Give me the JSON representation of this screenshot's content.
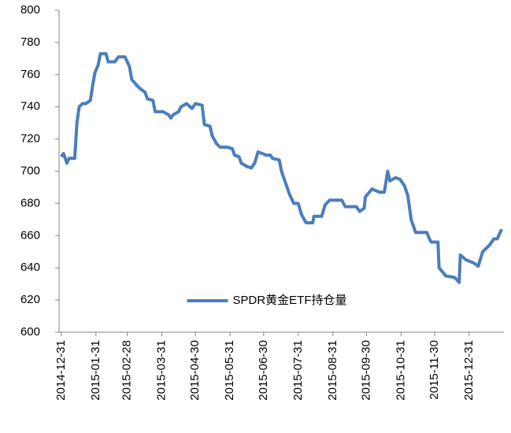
{
  "chart_data": {
    "type": "line",
    "x": [
      "2014-12-31",
      "2015-01-02",
      "2015-01-05",
      "2015-01-07",
      "2015-01-12",
      "2015-01-14",
      "2015-01-16",
      "2015-01-19",
      "2015-01-22",
      "2015-01-26",
      "2015-01-28",
      "2015-01-30",
      "2015-02-02",
      "2015-02-04",
      "2015-02-09",
      "2015-02-11",
      "2015-02-17",
      "2015-02-20",
      "2015-02-26",
      "2015-03-02",
      "2015-03-04",
      "2015-03-09",
      "2015-03-12",
      "2015-03-16",
      "2015-03-18",
      "2015-03-23",
      "2015-03-25",
      "2015-04-01",
      "2015-04-06",
      "2015-04-08",
      "2015-04-10",
      "2015-04-15",
      "2015-04-17",
      "2015-04-22",
      "2015-04-27",
      "2015-04-30",
      "2015-05-06",
      "2015-05-08",
      "2015-05-13",
      "2015-05-15",
      "2015-05-19",
      "2015-05-22",
      "2015-05-28",
      "2015-06-02",
      "2015-06-04",
      "2015-06-08",
      "2015-06-10",
      "2015-06-15",
      "2015-06-19",
      "2015-06-22",
      "2015-06-25",
      "2015-06-29",
      "2015-07-02",
      "2015-07-06",
      "2015-07-08",
      "2015-07-14",
      "2015-07-16",
      "2015-07-20",
      "2015-07-23",
      "2015-07-27",
      "2015-07-31",
      "2015-08-03",
      "2015-08-07",
      "2015-08-13",
      "2015-08-14",
      "2015-08-21",
      "2015-08-24",
      "2015-08-28",
      "2015-09-08",
      "2015-09-11",
      "2015-09-21",
      "2015-09-24",
      "2015-09-28",
      "2015-09-29",
      "2015-10-05",
      "2015-10-08",
      "2015-10-12",
      "2015-10-16",
      "2015-10-19",
      "2015-10-21",
      "2015-10-26",
      "2015-10-30",
      "2015-11-03",
      "2015-11-06",
      "2015-11-09",
      "2015-11-11",
      "2015-11-13",
      "2015-11-23",
      "2015-11-26",
      "2015-11-27",
      "2015-12-03",
      "2015-12-04",
      "2015-12-10",
      "2015-12-18",
      "2015-12-22",
      "2015-12-23",
      "2015-12-28",
      "2016-01-04",
      "2016-01-08",
      "2016-01-12",
      "2016-01-18",
      "2016-01-22",
      "2016-01-25",
      "2016-01-29"
    ],
    "series": [
      {
        "name": "SPDR黄金ETF持仓量",
        "color": "#4a7ebb",
        "values": [
          709,
          711,
          705,
          708,
          708,
          730,
          740,
          742,
          742,
          744,
          753,
          761,
          766,
          773,
          773,
          768,
          768,
          771,
          771,
          765,
          757,
          753,
          751,
          749,
          745,
          744,
          737,
          737,
          735,
          733,
          735,
          737,
          740,
          742,
          739,
          742,
          741,
          729,
          728,
          722,
          717,
          715,
          715,
          714,
          710,
          709,
          705,
          703,
          702,
          705,
          712,
          711,
          710,
          710,
          708,
          707,
          700,
          692,
          686,
          680,
          680,
          673,
          668,
          668,
          672,
          672,
          679,
          682,
          682,
          678,
          678,
          675,
          677,
          684,
          689,
          688,
          687,
          687,
          700,
          694,
          696,
          695,
          691,
          685,
          670,
          666,
          662,
          662,
          657,
          656,
          656,
          640,
          635,
          634,
          631,
          648,
          645,
          643,
          641,
          650,
          654,
          658,
          658,
          664
        ]
      }
    ],
    "xlim": [
      "2014-12-29",
      "2016-01-31"
    ],
    "xticks": [
      "2014-12-31",
      "2015-01-31",
      "2015-02-28",
      "2015-03-31",
      "2015-04-30",
      "2015-05-31",
      "2015-06-30",
      "2015-07-31",
      "2015-08-31",
      "2015-09-30",
      "2015-10-31",
      "2015-11-30",
      "2015-12-31"
    ],
    "ylim": [
      600,
      800
    ],
    "yticks": [
      600,
      620,
      640,
      660,
      680,
      700,
      720,
      740,
      760,
      780,
      800
    ],
    "grid": false,
    "legend": "lower center"
  }
}
